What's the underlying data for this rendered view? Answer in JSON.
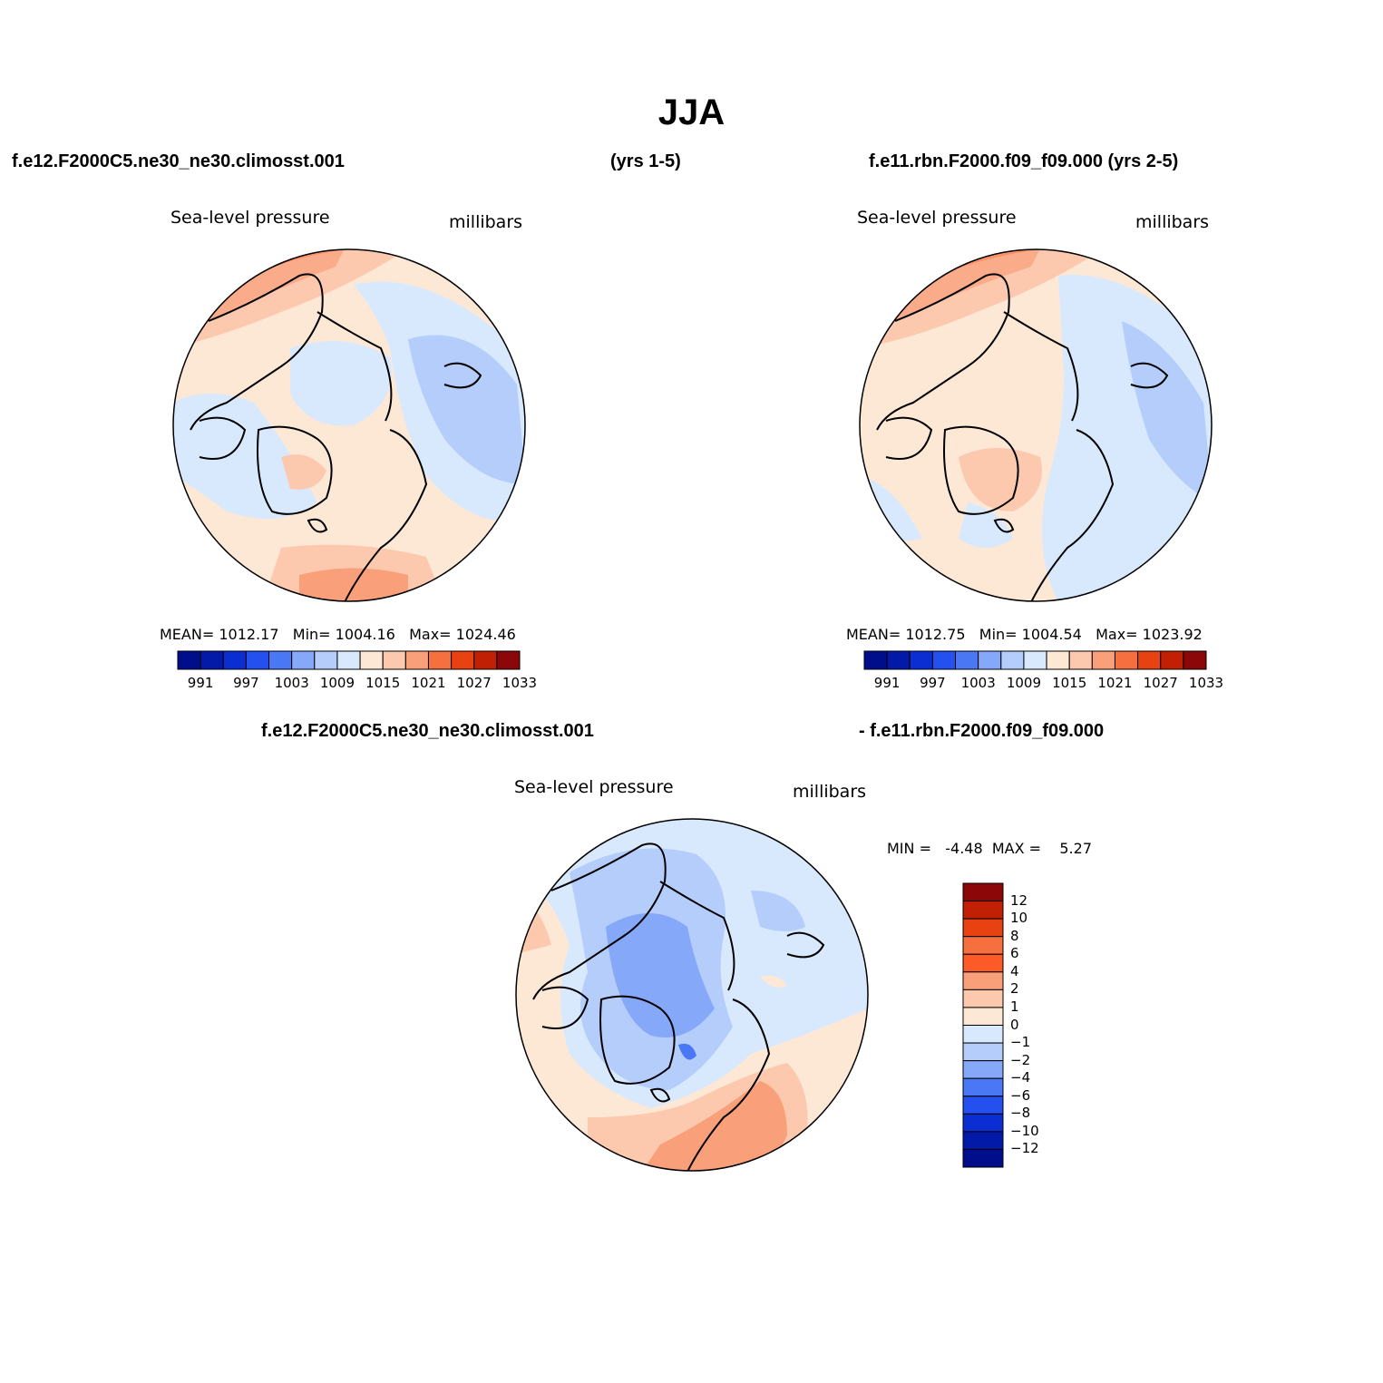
{
  "figure": {
    "title": "JJA"
  },
  "panels": [
    {
      "case_label": "f.e12.F2000C5.ne30_ne30.climosst.001",
      "years_label": "(yrs 1-5)",
      "variable": "Sea-level pressure",
      "units": "millibars",
      "stats": {
        "mean_label": "MEAN=",
        "mean": "1012.17",
        "min_label": "Min=",
        "min": "1004.16",
        "max_label": "Max=",
        "max": "1024.46"
      }
    },
    {
      "case_label": "f.e11.rbn.F2000.f09_f09.000 (yrs 2-5)",
      "variable": "Sea-level pressure",
      "units": "millibars",
      "stats": {
        "mean_label": "MEAN=",
        "mean": "1012.75",
        "min_label": "Min=",
        "min": "1004.54",
        "max_label": "Max=",
        "max": "1023.92"
      }
    },
    {
      "case_label_a": "f.e12.F2000C5.ne30_ne30.climosst.001",
      "case_label_b": "- f.e11.rbn.F2000.f09_f09.000",
      "variable": "Sea-level pressure",
      "units": "millibars",
      "stats": {
        "min_label": "MIN =",
        "min": "-4.48",
        "max_label": "MAX =",
        "max": "5.27"
      }
    }
  ],
  "colorbar_abs": {
    "colors": [
      "#000e8c",
      "#0319a8",
      "#0a2ed2",
      "#2350ee",
      "#4a78f5",
      "#86a8f8",
      "#b4cdfb",
      "#d8e9fd",
      "#fde8d6",
      "#fcc9ae",
      "#f9a07a",
      "#f6703f",
      "#e84112",
      "#c22005",
      "#8c0808"
    ],
    "labels": [
      "991",
      "997",
      "1003",
      "1009",
      "1015",
      "1021",
      "1027",
      "1033"
    ]
  },
  "colorbar_diff": {
    "colors": [
      "#8c0808",
      "#c22005",
      "#e84112",
      "#f6703f",
      "#fc5a26",
      "#f9a07a",
      "#fcc9ae",
      "#fde8d6",
      "#d8e9fd",
      "#b4cdfb",
      "#86a8f8",
      "#4a78f5",
      "#2350ee",
      "#0a2ed2",
      "#0319a8",
      "#000e8c"
    ],
    "labels": [
      "12",
      "10",
      "8",
      "6",
      "4",
      "2",
      "1",
      "0",
      "−1",
      "−2",
      "−4",
      "−6",
      "−8",
      "−10",
      "−12"
    ]
  },
  "chart_data": [
    {
      "type": "heatmap",
      "projection": "north polar stereographic",
      "title": "Sea-level pressure",
      "units": "millibars",
      "case": "f.e12.F2000C5.ne30_ne30.climosst.001 (yrs 1-5)",
      "mean": 1012.17,
      "min": 1004.16,
      "max": 1024.46,
      "levels": [
        991,
        994,
        997,
        1000,
        1003,
        1006,
        1009,
        1012,
        1015,
        1018,
        1021,
        1024,
        1027,
        1030,
        1033
      ]
    },
    {
      "type": "heatmap",
      "projection": "north polar stereographic",
      "title": "Sea-level pressure",
      "units": "millibars",
      "case": "f.e11.rbn.F2000.f09_f09.000 (yrs 2-5)",
      "mean": 1012.75,
      "min": 1004.54,
      "max": 1023.92,
      "levels": [
        991,
        994,
        997,
        1000,
        1003,
        1006,
        1009,
        1012,
        1015,
        1018,
        1021,
        1024,
        1027,
        1030,
        1033
      ]
    },
    {
      "type": "heatmap",
      "projection": "north polar stereographic",
      "title": "Sea-level pressure",
      "units": "millibars",
      "case": "f.e12.F2000C5.ne30_ne30.climosst.001 - f.e11.rbn.F2000.f09_f09.000",
      "min": -4.48,
      "max": 5.27,
      "levels": [
        -12,
        -10,
        -8,
        -6,
        -4,
        -2,
        -1,
        0,
        1,
        2,
        4,
        6,
        8,
        10,
        12
      ]
    }
  ]
}
